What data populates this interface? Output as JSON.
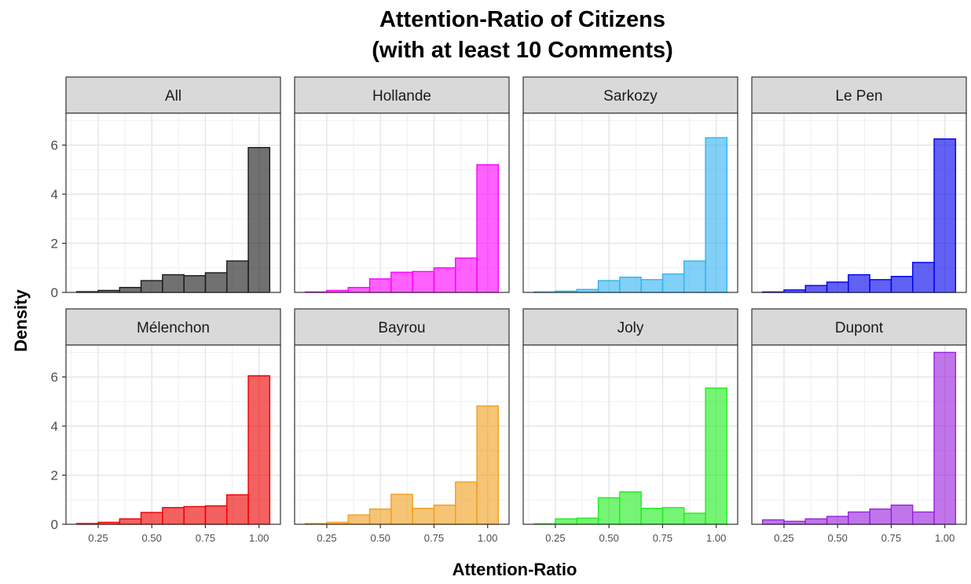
{
  "chart_data": {
    "type": "bar",
    "title_lines": [
      "Attention-Ratio of Citizens",
      "(with at least 10 Comments)"
    ],
    "xlabel": "Attention-Ratio",
    "ylabel": "Density",
    "xlim": [
      0.1,
      1.1
    ],
    "ylim": [
      0,
      7.3
    ],
    "x_ticks": [
      "0.25",
      "0.50",
      "0.75",
      "1.00"
    ],
    "y_ticks": [
      "0",
      "2",
      "4",
      "6"
    ],
    "bin_width": 0.1,
    "bin_centers": [
      0.2,
      0.3,
      0.4,
      0.5,
      0.6,
      0.7,
      0.8,
      0.9,
      1.0
    ],
    "grid": true,
    "panels": [
      {
        "name": "All",
        "color": "#1a1a1a",
        "values": [
          0.03,
          0.08,
          0.2,
          0.48,
          0.72,
          0.68,
          0.8,
          1.28,
          5.9
        ]
      },
      {
        "name": "Hollande",
        "color": "#ff00ff",
        "values": [
          0.02,
          0.08,
          0.2,
          0.55,
          0.82,
          0.85,
          1.0,
          1.4,
          5.2
        ]
      },
      {
        "name": "Sarkozy",
        "color": "#33b3f2",
        "values": [
          0.02,
          0.05,
          0.12,
          0.48,
          0.62,
          0.52,
          0.75,
          1.28,
          6.3
        ]
      },
      {
        "name": "Le Pen",
        "color": "#0000ee",
        "values": [
          0.02,
          0.1,
          0.28,
          0.42,
          0.72,
          0.52,
          0.65,
          1.22,
          6.25
        ]
      },
      {
        "name": "Mélenchon",
        "color": "#ee0000",
        "values": [
          0.03,
          0.08,
          0.22,
          0.48,
          0.68,
          0.72,
          0.75,
          1.2,
          6.05
        ]
      },
      {
        "name": "Bayrou",
        "color": "#f0a020",
        "values": [
          0.03,
          0.08,
          0.38,
          0.62,
          1.22,
          0.65,
          0.78,
          1.72,
          4.82
        ]
      },
      {
        "name": "Joly",
        "color": "#22ee22",
        "values": [
          0.02,
          0.22,
          0.25,
          1.08,
          1.32,
          0.65,
          0.68,
          0.45,
          5.55
        ]
      },
      {
        "name": "Dupont",
        "color": "#9922dd",
        "values": [
          0.18,
          0.12,
          0.22,
          0.32,
          0.5,
          0.62,
          0.78,
          0.5,
          7.0
        ]
      }
    ]
  }
}
